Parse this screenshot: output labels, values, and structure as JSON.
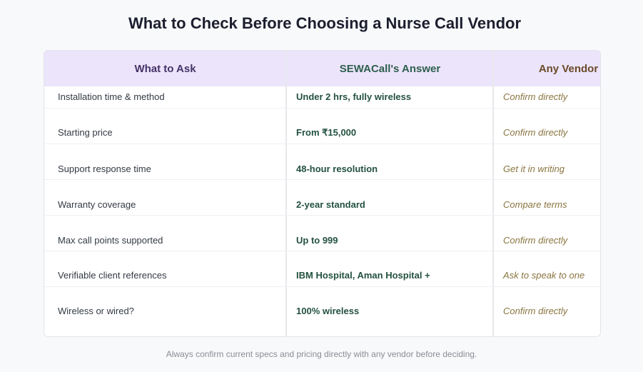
{
  "title": "What to Check Before Choosing a Nurse Call Vendor",
  "table": {
    "headers": [
      "What to Ask",
      "SEWACall's Answer",
      "Any Vendor"
    ],
    "rows": [
      {
        "question": "Installation time & method",
        "sewacall": "Under 2 hrs, fully wireless",
        "vendor": "Confirm directly"
      },
      {
        "question": "Starting price",
        "sewacall": "From ₹15,000",
        "vendor": "Confirm directly"
      },
      {
        "question": "Support response time",
        "sewacall": "48-hour resolution",
        "vendor": "Get it in writing"
      },
      {
        "question": "Warranty coverage",
        "sewacall": "2-year standard",
        "vendor": "Compare terms"
      },
      {
        "question": "Max call points supported",
        "sewacall": "Up to 999",
        "vendor": "Confirm directly"
      },
      {
        "question": "Verifiable client references",
        "sewacall": "IBM Hospital, Aman Hospital +",
        "vendor": "Ask to speak to one"
      },
      {
        "question": "Wireless or wired?",
        "sewacall": "100% wireless",
        "vendor": "Confirm directly"
      }
    ]
  },
  "footnote": "Always confirm current specs and pricing directly with any vendor before deciding.",
  "colors": {
    "header_bg": "#ece4fb",
    "question_header": "#443366",
    "answer_header": "#2e5e4e",
    "vendor_header": "#6a4a2a",
    "answer_text": "#23513f",
    "vendor_text": "#8a7540"
  }
}
